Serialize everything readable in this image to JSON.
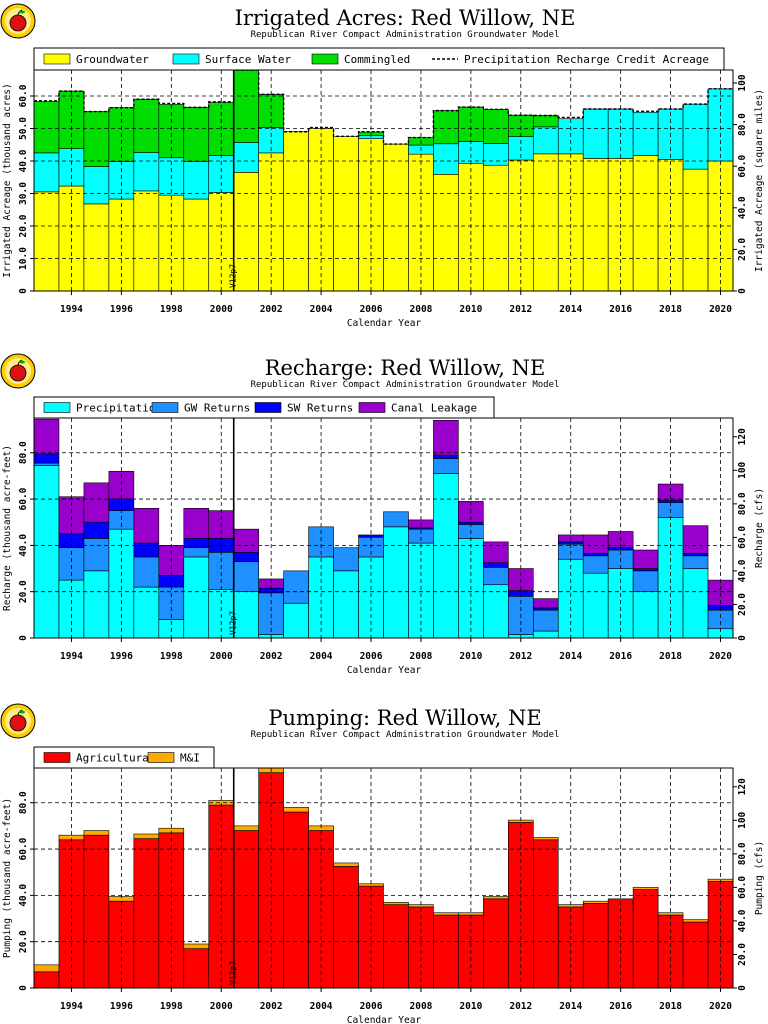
{
  "chart_data": [
    {
      "type": "bar",
      "stacked": true,
      "title": "Irrigated Acres: Red Willow, NE",
      "subtitle": "Republican River Compact Administration Groundwater Model",
      "xlabel": "Calendar Year",
      "ylabel": "Irrigated Acreage (thousand acres)",
      "ylabel_right": "Irrigated Acreage (square miles)",
      "ylim": [
        0,
        68
      ],
      "yticks": [
        0,
        10,
        20,
        30,
        40,
        50,
        60
      ],
      "ytick_labels": [
        "0",
        "10.0",
        "20.0",
        "30.0",
        "40.0",
        "50.0",
        "60.0"
      ],
      "ylim_right": [
        0,
        106.25
      ],
      "yticks_right": [
        0,
        20,
        40,
        60,
        80,
        100
      ],
      "ytick_labels_right": [
        "0",
        "20.0",
        "40.0",
        "60.0",
        "80.0",
        "100"
      ],
      "x": [
        1993,
        1994,
        1995,
        1996,
        1997,
        1998,
        1999,
        2000,
        2001,
        2002,
        2003,
        2004,
        2005,
        2006,
        2007,
        2008,
        2009,
        2010,
        2011,
        2012,
        2013,
        2014,
        2015,
        2016,
        2017,
        2018,
        2019,
        2020
      ],
      "xtick_labels": [
        "1994",
        "1996",
        "1998",
        "2000",
        "2002",
        "2004",
        "2006",
        "2008",
        "2010",
        "2012",
        "2014",
        "2016",
        "2018",
        "2020"
      ],
      "legend_position": "top",
      "grid": true,
      "series": [
        {
          "name": "Groundwater",
          "color": "#ffff00",
          "values": [
            30.5,
            32.3,
            26.8,
            28.3,
            30.8,
            29.5,
            28.3,
            30.3,
            36.5,
            42.5,
            49.0,
            50.0,
            47.5,
            46.9,
            45.2,
            42.1,
            35.9,
            39.3,
            38.7,
            40.3,
            42.2,
            42.2,
            40.8,
            40.8,
            41.7,
            40.5,
            37.5,
            40.0
          ]
        },
        {
          "name": "Surface Water",
          "color": "#00ffff",
          "values": [
            12.0,
            11.5,
            11.5,
            11.5,
            11.8,
            11.5,
            11.5,
            11.4,
            9.2,
            7.8,
            0,
            0,
            0,
            1.0,
            0,
            2.8,
            9.4,
            6.7,
            6.7,
            7.2,
            8.3,
            10.8,
            15.2,
            15.2,
            13.3,
            15.5,
            20.0,
            22.2
          ]
        },
        {
          "name": "Commingled",
          "color": "#00dd00",
          "values": [
            15.8,
            17.7,
            16.9,
            16.6,
            16.4,
            16.4,
            16.7,
            16.3,
            22.3,
            10.2,
            0,
            0,
            0,
            1.0,
            0,
            2.3,
            10.2,
            10.6,
            10.5,
            6.6,
            3.5,
            0,
            0,
            0,
            0,
            0,
            0,
            0
          ]
        },
        {
          "name": "Precipitation Recharge Credit Acreage",
          "style": "dashed-line",
          "color": "#000000",
          "values": [
            58.5,
            61.5,
            55.2,
            56.4,
            59.0,
            57.7,
            56.5,
            58.2,
            68.0,
            60.5,
            49.0,
            50.3,
            47.6,
            49.0,
            45.2,
            47.2,
            55.5,
            56.6,
            55.9,
            54.1,
            54.0,
            53.4,
            56.0,
            56.0,
            55.3,
            56.0,
            57.5,
            62.2
          ]
        }
      ],
      "annotations": [
        {
          "text": "V12p7",
          "x": 2000.5
        }
      ]
    },
    {
      "type": "bar",
      "stacked": true,
      "title": "Recharge: Red Willow, NE",
      "subtitle": "Republican River Compact Administration Groundwater Model",
      "xlabel": "Calendar Year",
      "ylabel": "Recharge (thousand acre-feet)",
      "ylabel_right": "Recharge (cfs)",
      "ylim": [
        0,
        95
      ],
      "yticks": [
        0,
        20,
        40,
        60,
        80
      ],
      "ytick_labels": [
        "0",
        "20.0",
        "40.0",
        "60.0",
        "80.0"
      ],
      "ylim_right": [
        0,
        131.2
      ],
      "yticks_right": [
        0,
        20,
        40,
        60,
        80,
        100,
        120
      ],
      "ytick_labels_right": [
        "0",
        "20.0",
        "40.0",
        "60.0",
        "80.0",
        "100",
        "120"
      ],
      "x": [
        1993,
        1994,
        1995,
        1996,
        1997,
        1998,
        1999,
        2000,
        2001,
        2002,
        2003,
        2004,
        2005,
        2006,
        2007,
        2008,
        2009,
        2010,
        2011,
        2012,
        2013,
        2014,
        2015,
        2016,
        2017,
        2018,
        2019,
        2020
      ],
      "xtick_labels": [
        "1994",
        "1996",
        "1998",
        "2000",
        "2002",
        "2004",
        "2006",
        "2008",
        "2010",
        "2012",
        "2014",
        "2016",
        "2018",
        "2020"
      ],
      "legend_position": "top",
      "grid": true,
      "series": [
        {
          "name": "Precipitation",
          "color": "#00ffff",
          "values": [
            74.5,
            25.0,
            29.0,
            47.0,
            22.0,
            8.0,
            35.0,
            21.0,
            20.0,
            1.5,
            15.0,
            35.0,
            29.0,
            35.0,
            48.0,
            41.0,
            71.0,
            43.0,
            23.0,
            1.5,
            3.0,
            34.0,
            28.0,
            30.0,
            20.0,
            52.0,
            30.0,
            4.0
          ]
        },
        {
          "name": "GW Returns",
          "color": "#1e90ff",
          "values": [
            1.0,
            14.0,
            14.0,
            8.0,
            13.0,
            14.0,
            4.0,
            16.0,
            13.0,
            18.0,
            14.0,
            13.0,
            10.0,
            8.5,
            6.5,
            6.0,
            6.5,
            6.0,
            7.5,
            16.5,
            9.0,
            6.5,
            7.5,
            8.0,
            9.0,
            6.5,
            5.5,
            8.0
          ]
        },
        {
          "name": "SW Returns",
          "color": "#0000ff",
          "values": [
            4.0,
            6.0,
            7.0,
            5.0,
            6.0,
            5.0,
            4.0,
            6.0,
            4.0,
            2.0,
            0,
            0,
            0,
            1.0,
            0,
            0.5,
            1.5,
            1.0,
            2.0,
            2.5,
            1.0,
            1.0,
            1.0,
            1.0,
            1.0,
            1.0,
            1.0,
            2.0
          ]
        },
        {
          "name": "Canal Leakage",
          "color": "#9900cc",
          "values": [
            15.0,
            16.0,
            17.0,
            12.0,
            15.0,
            13.0,
            13.0,
            12.0,
            10.0,
            4.0,
            0,
            0,
            0,
            0,
            0,
            3.5,
            15.0,
            9.0,
            9.0,
            9.5,
            4.0,
            3.0,
            8.0,
            7.0,
            8.0,
            7.0,
            12.0,
            11.0
          ]
        }
      ],
      "annotations": [
        {
          "text": "V12p7",
          "x": 2000.5
        }
      ]
    },
    {
      "type": "bar",
      "stacked": true,
      "title": "Pumping: Red Willow, NE",
      "subtitle": "Republican River Compact Administration Groundwater Model",
      "xlabel": "Calendar Year",
      "ylabel": "Pumping (thousand acre-feet)",
      "ylabel_right": "Pumping (cfs)",
      "ylim": [
        0,
        95
      ],
      "yticks": [
        0,
        20,
        40,
        60,
        80
      ],
      "ytick_labels": [
        "0",
        "20.0",
        "40.0",
        "60.0",
        "80.0"
      ],
      "ylim_right": [
        0,
        131.2
      ],
      "yticks_right": [
        0,
        20,
        40,
        60,
        80,
        100,
        120
      ],
      "ytick_labels_right": [
        "0",
        "20.0",
        "40.0",
        "60.0",
        "80.0",
        "100",
        "120"
      ],
      "x": [
        1993,
        1994,
        1995,
        1996,
        1997,
        1998,
        1999,
        2000,
        2001,
        2002,
        2003,
        2004,
        2005,
        2006,
        2007,
        2008,
        2009,
        2010,
        2011,
        2012,
        2013,
        2014,
        2015,
        2016,
        2017,
        2018,
        2019,
        2020
      ],
      "xtick_labels": [
        "1994",
        "1996",
        "1998",
        "2000",
        "2002",
        "2004",
        "2006",
        "2008",
        "2010",
        "2012",
        "2014",
        "2016",
        "2018",
        "2020"
      ],
      "legend_position": "top",
      "grid": true,
      "series": [
        {
          "name": "Agricultural",
          "color": "#ff0000",
          "values": [
            7.0,
            64.0,
            66.0,
            37.5,
            64.5,
            67.0,
            17.0,
            79.0,
            68.0,
            93.0,
            76.0,
            68.0,
            52.5,
            44.0,
            36.0,
            35.0,
            31.5,
            31.5,
            38.5,
            71.5,
            64.0,
            35.0,
            36.5,
            38.5,
            42.5,
            31.5,
            28.5,
            46.0
          ]
        },
        {
          "name": "M&I",
          "color": "#ffaa00",
          "values": [
            3.0,
            2.0,
            2.0,
            2.0,
            2.0,
            2.0,
            2.0,
            2.0,
            2.0,
            2.0,
            2.0,
            2.0,
            1.5,
            1.0,
            1.0,
            1.0,
            1.0,
            1.0,
            1.0,
            1.0,
            1.0,
            1.0,
            1.0,
            0,
            1.0,
            1.0,
            1.0,
            1.0
          ]
        }
      ],
      "annotations": [
        {
          "text": "V12p7",
          "x": 2000.5
        }
      ]
    }
  ]
}
